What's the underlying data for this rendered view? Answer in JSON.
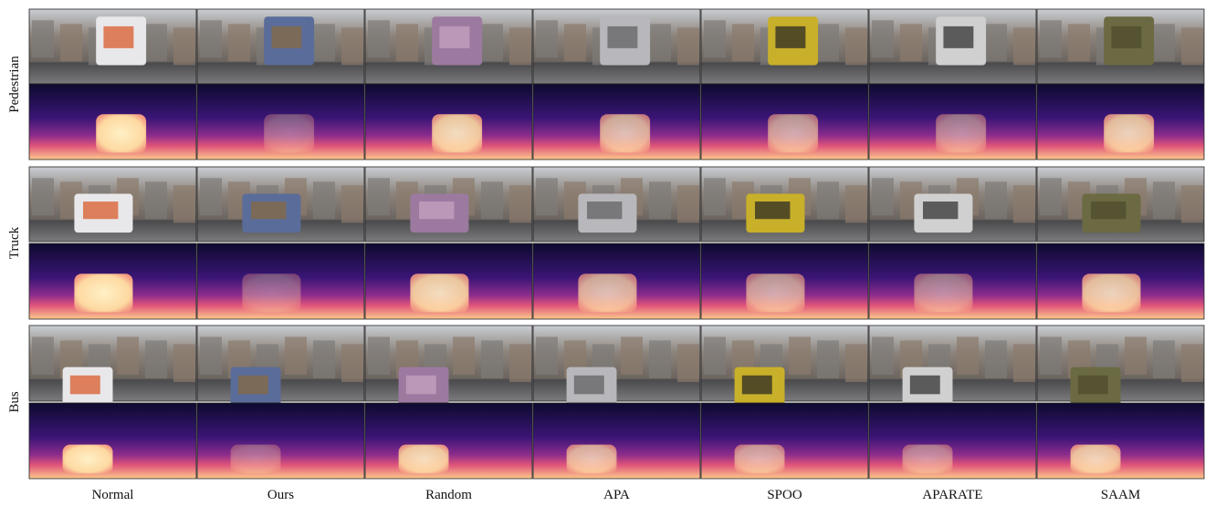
{
  "rows": [
    "Pedestrian",
    "Truck",
    "Bus"
  ],
  "columns": [
    "Normal",
    "Ours",
    "Random",
    "APA",
    "SPOO",
    "APARATE",
    "SAAM"
  ]
}
